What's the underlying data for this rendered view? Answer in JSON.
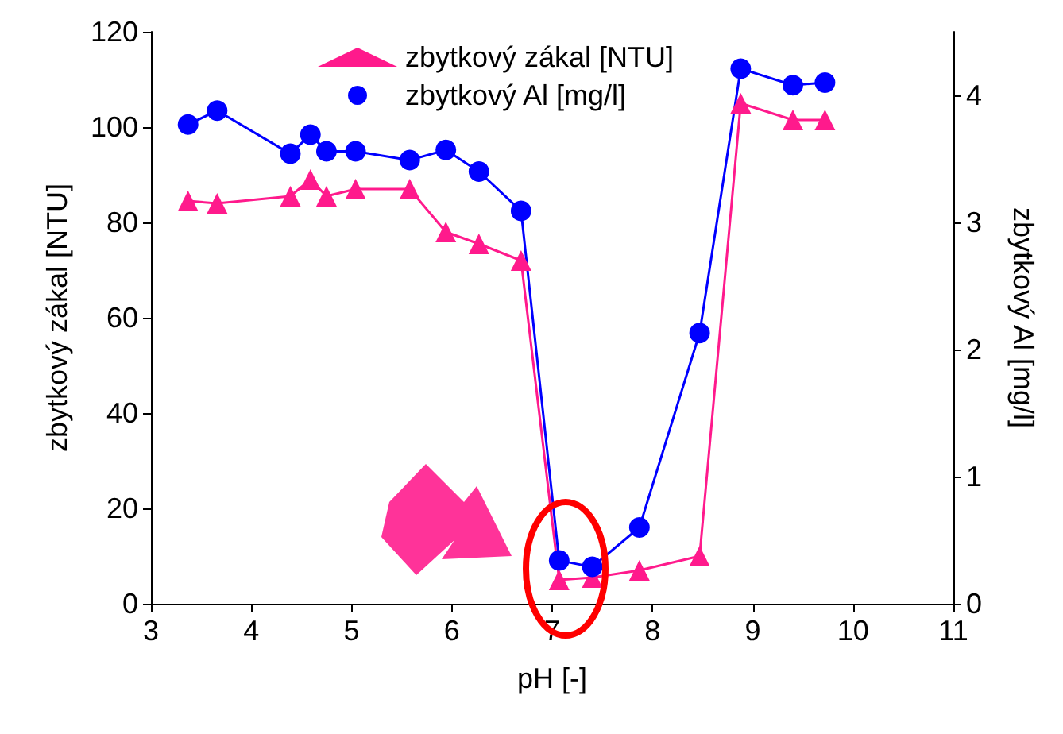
{
  "chart_data": {
    "type": "line",
    "xlabel": "pH [-]",
    "ylabel": "zbytkový zákal [NTU]",
    "y2label": "zbytkový Al [mg/l]",
    "x": [
      3.37,
      3.66,
      4.39,
      4.59,
      4.75,
      5.04,
      5.58,
      5.94,
      6.27,
      6.69,
      7.07,
      7.4,
      7.87,
      8.47,
      8.88,
      9.4,
      9.72
    ],
    "series": [
      {
        "name": "zbytkový zákal [NTU]",
        "color": "#ff1a8c",
        "marker": "triangle",
        "values": [
          84.5,
          84,
          85.5,
          89,
          85.5,
          87,
          87,
          78,
          75.5,
          72,
          5,
          5.5,
          7,
          10,
          105,
          101.5,
          101.5
        ]
      },
      {
        "name": "zbytkový Al [mg/l]",
        "color": "#0000ff",
        "marker": "circle",
        "axis": "y2",
        "values": [
          3.77,
          3.88,
          3.54,
          3.69,
          3.56,
          3.56,
          3.49,
          3.57,
          3.4,
          3.09,
          0.34,
          0.29,
          0.6,
          2.13,
          4.21,
          4.08,
          4.1
        ]
      }
    ],
    "xlim": [
      3,
      11
    ],
    "xticks": [
      3,
      4,
      5,
      6,
      7,
      8,
      9,
      10,
      11
    ],
    "ylim": [
      0,
      120
    ],
    "yticks": [
      0,
      20,
      40,
      60,
      80,
      100,
      120
    ],
    "y2lim": [
      0,
      4.5
    ],
    "y2ticks": [
      0,
      1,
      2,
      3,
      4
    ],
    "grid": false,
    "legend": "top",
    "line_style": "solid"
  }
}
